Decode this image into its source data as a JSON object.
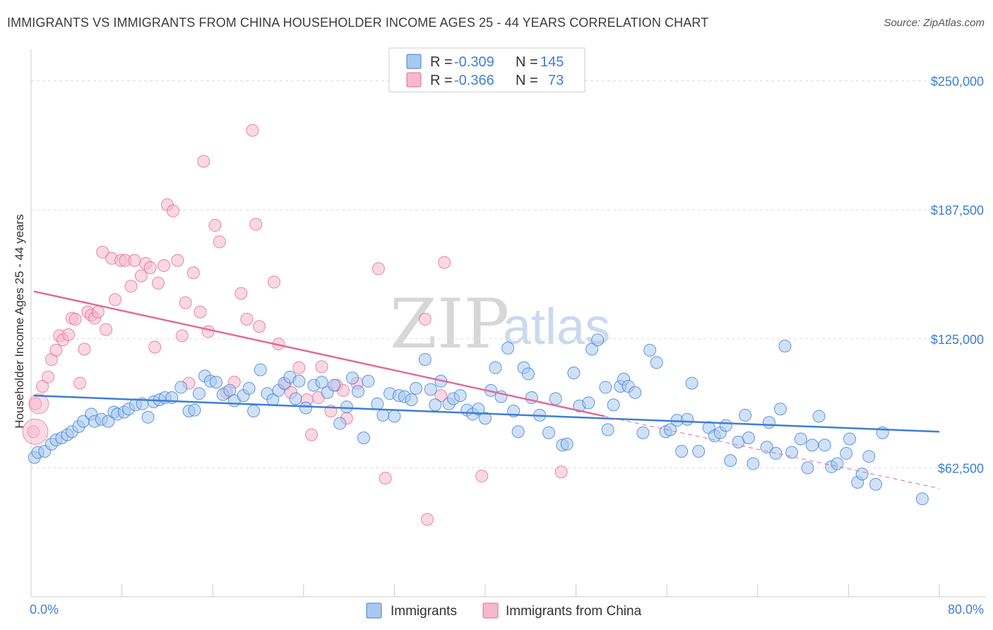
{
  "title": "IMMIGRANTS VS IMMIGRANTS FROM CHINA HOUSEHOLDER INCOME AGES 25 - 44 YEARS CORRELATION CHART",
  "source": "Source: ZipAtlas.com",
  "watermark": {
    "zip": "ZIP",
    "atlas": "atlas"
  },
  "colors": {
    "blue": "#3d7fd6",
    "blue_fill": "#a9c8f0",
    "pink": "#e26a96",
    "pink_fill": "#f6b8cc",
    "grid": "#dddddd"
  },
  "legend_box": {
    "rows": [
      {
        "r_label": "R = ",
        "r_value": "-0.309",
        "n_label": "N = ",
        "n_value": "145"
      },
      {
        "r_label": "R = ",
        "r_value": "-0.366",
        "n_label": "N = ",
        "n_value": "73"
      }
    ]
  },
  "chart_data": {
    "type": "scatter",
    "xlabel": "",
    "ylabel": "Householder Income Ages 25 - 44 years",
    "xlim": [
      0,
      80
    ],
    "ylim": [
      0,
      262500
    ],
    "x_tick_labels": [
      "0.0%",
      "80.0%"
    ],
    "y_ticks": [
      62500,
      125000,
      187500,
      250000
    ],
    "y_tick_labels": [
      "$62,500",
      "$125,000",
      "$187,500",
      "$250,000"
    ],
    "grid": true,
    "legend_position": "top-center",
    "series": [
      {
        "name": "Immigrants",
        "trend": {
          "x": [
            0,
            80
          ],
          "y": [
            97500,
            80000
          ]
        },
        "points": [
          [
            0.3,
            67500
          ],
          [
            0.6,
            70000
          ],
          [
            1.2,
            70500
          ],
          [
            1.8,
            74000
          ],
          [
            2.2,
            76000
          ],
          [
            2.7,
            77000
          ],
          [
            3.2,
            78500
          ],
          [
            3.6,
            80000
          ],
          [
            4.2,
            82500
          ],
          [
            4.6,
            85000
          ],
          [
            5.3,
            88500
          ],
          [
            5.6,
            85000
          ],
          [
            6.2,
            86000
          ],
          [
            6.8,
            85000
          ],
          [
            7.3,
            89500
          ],
          [
            7.6,
            88500
          ],
          [
            8.2,
            89500
          ],
          [
            8.6,
            91000
          ],
          [
            9.2,
            93000
          ],
          [
            9.8,
            93500
          ],
          [
            10.3,
            87000
          ],
          [
            10.8,
            94500
          ],
          [
            11.3,
            95500
          ],
          [
            11.8,
            96500
          ],
          [
            12.4,
            96500
          ],
          [
            13.2,
            101500
          ],
          [
            13.9,
            90000
          ],
          [
            14.4,
            90500
          ],
          [
            14.8,
            98500
          ],
          [
            15.3,
            107000
          ],
          [
            15.8,
            104500
          ],
          [
            16.3,
            104000
          ],
          [
            16.9,
            98000
          ],
          [
            17.5,
            100000
          ],
          [
            17.9,
            95000
          ],
          [
            18.7,
            97500
          ],
          [
            19.2,
            101000
          ],
          [
            19.6,
            90000
          ],
          [
            20.2,
            110000
          ],
          [
            20.8,
            98500
          ],
          [
            21.3,
            95500
          ],
          [
            21.8,
            100000
          ],
          [
            22.3,
            103500
          ],
          [
            22.8,
            106500
          ],
          [
            23.3,
            96000
          ],
          [
            23.6,
            104500
          ],
          [
            24.2,
            91500
          ],
          [
            24.9,
            102500
          ],
          [
            25.6,
            104000
          ],
          [
            26.1,
            99000
          ],
          [
            26.7,
            102500
          ],
          [
            27.2,
            84000
          ],
          [
            27.8,
            92000
          ],
          [
            28.3,
            106000
          ],
          [
            28.8,
            99500
          ],
          [
            29.3,
            77000
          ],
          [
            29.7,
            104500
          ],
          [
            30.5,
            93500
          ],
          [
            31.0,
            88000
          ],
          [
            31.6,
            98500
          ],
          [
            32.0,
            87500
          ],
          [
            32.4,
            97500
          ],
          [
            32.9,
            97000
          ],
          [
            33.5,
            95500
          ],
          [
            33.9,
            101000
          ],
          [
            34.7,
            115000
          ],
          [
            35.2,
            100500
          ],
          [
            35.6,
            93000
          ],
          [
            36.1,
            104500
          ],
          [
            36.8,
            93500
          ],
          [
            37.2,
            96000
          ],
          [
            37.8,
            97500
          ],
          [
            38.4,
            90500
          ],
          [
            38.9,
            88500
          ],
          [
            39.4,
            91000
          ],
          [
            40.0,
            86500
          ],
          [
            40.5,
            100000
          ],
          [
            40.9,
            111000
          ],
          [
            41.4,
            97000
          ],
          [
            42.0,
            120500
          ],
          [
            42.5,
            90000
          ],
          [
            42.9,
            80000
          ],
          [
            43.4,
            111000
          ],
          [
            43.8,
            108000
          ],
          [
            44.1,
            96500
          ],
          [
            44.8,
            88000
          ],
          [
            45.6,
            79500
          ],
          [
            46.2,
            96000
          ],
          [
            46.8,
            73500
          ],
          [
            47.2,
            74000
          ],
          [
            47.8,
            108500
          ],
          [
            48.3,
            92500
          ],
          [
            49.1,
            94000
          ],
          [
            49.4,
            120000
          ],
          [
            49.9,
            124500
          ],
          [
            50.6,
            101500
          ],
          [
            50.8,
            81000
          ],
          [
            51.3,
            93000
          ],
          [
            51.9,
            102000
          ],
          [
            52.2,
            105500
          ],
          [
            52.6,
            102000
          ],
          [
            53.2,
            99000
          ],
          [
            53.9,
            79500
          ],
          [
            54.5,
            119500
          ],
          [
            55.1,
            113500
          ],
          [
            55.9,
            80000
          ],
          [
            56.3,
            81000
          ],
          [
            56.9,
            85500
          ],
          [
            57.3,
            70500
          ],
          [
            57.8,
            86000
          ],
          [
            58.2,
            103500
          ],
          [
            58.8,
            70500
          ],
          [
            59.7,
            82000
          ],
          [
            60.2,
            78000
          ],
          [
            60.7,
            79500
          ],
          [
            61.2,
            83000
          ],
          [
            61.6,
            66000
          ],
          [
            62.3,
            75000
          ],
          [
            62.9,
            88000
          ],
          [
            63.2,
            77000
          ],
          [
            63.6,
            64500
          ],
          [
            64.8,
            72500
          ],
          [
            65.0,
            84500
          ],
          [
            65.6,
            69500
          ],
          [
            66.0,
            91000
          ],
          [
            66.4,
            121500
          ],
          [
            67.0,
            70000
          ],
          [
            67.8,
            76500
          ],
          [
            68.4,
            62500
          ],
          [
            68.8,
            73500
          ],
          [
            69.4,
            87500
          ],
          [
            69.9,
            73500
          ],
          [
            70.5,
            63000
          ],
          [
            71.0,
            64500
          ],
          [
            71.8,
            69500
          ],
          [
            72.1,
            76500
          ],
          [
            72.8,
            55500
          ],
          [
            73.2,
            59500
          ],
          [
            73.8,
            68000
          ],
          [
            74.4,
            54500
          ],
          [
            75.0,
            79500
          ],
          [
            78.5,
            47500
          ]
        ]
      },
      {
        "name": "Immigrants from China",
        "trend": {
          "x": [
            0,
            50.5
          ],
          "y": [
            148000,
            87500
          ]
        },
        "trend_projection": {
          "x": [
            50.5,
            80
          ],
          "y": [
            87500,
            52500
          ]
        },
        "points": [
          [
            0.2,
            80000
          ],
          [
            0.4,
            93500
          ],
          [
            1.0,
            102000
          ],
          [
            1.5,
            106500
          ],
          [
            1.8,
            115000
          ],
          [
            2.2,
            119500
          ],
          [
            2.5,
            126500
          ],
          [
            2.8,
            124500
          ],
          [
            3.3,
            127000
          ],
          [
            3.6,
            135000
          ],
          [
            3.9,
            134500
          ],
          [
            4.3,
            103500
          ],
          [
            4.7,
            120000
          ],
          [
            5.0,
            138000
          ],
          [
            5.3,
            136500
          ],
          [
            5.6,
            135000
          ],
          [
            5.9,
            138000
          ],
          [
            6.3,
            167000
          ],
          [
            6.6,
            129500
          ],
          [
            7.1,
            164000
          ],
          [
            7.4,
            144000
          ],
          [
            7.9,
            163000
          ],
          [
            8.3,
            163000
          ],
          [
            8.8,
            150500
          ],
          [
            9.1,
            163000
          ],
          [
            9.7,
            155500
          ],
          [
            10.1,
            161500
          ],
          [
            10.5,
            159500
          ],
          [
            10.9,
            121000
          ],
          [
            11.2,
            152000
          ],
          [
            11.7,
            160500
          ],
          [
            12.0,
            190000
          ],
          [
            12.5,
            187000
          ],
          [
            12.9,
            163000
          ],
          [
            13.3,
            126500
          ],
          [
            13.6,
            142500
          ],
          [
            13.9,
            103500
          ],
          [
            14.3,
            157000
          ],
          [
            14.9,
            138000
          ],
          [
            15.2,
            211000
          ],
          [
            15.6,
            128500
          ],
          [
            16.2,
            180000
          ],
          [
            16.6,
            172000
          ],
          [
            17.2,
            99000
          ],
          [
            17.9,
            104000
          ],
          [
            18.5,
            147000
          ],
          [
            19.0,
            134500
          ],
          [
            19.5,
            226000
          ],
          [
            19.8,
            180500
          ],
          [
            20.1,
            131000
          ],
          [
            21.4,
            152500
          ],
          [
            21.8,
            122500
          ],
          [
            22.4,
            103000
          ],
          [
            22.9,
            99000
          ],
          [
            23.6,
            111000
          ],
          [
            24.3,
            95500
          ],
          [
            24.7,
            78500
          ],
          [
            25.3,
            96500
          ],
          [
            25.6,
            111500
          ],
          [
            26.4,
            90000
          ],
          [
            26.9,
            102500
          ],
          [
            27.5,
            100000
          ],
          [
            27.8,
            86500
          ],
          [
            28.7,
            103500
          ],
          [
            30.6,
            159000
          ],
          [
            31.2,
            57500
          ],
          [
            34.7,
            134500
          ],
          [
            34.9,
            37500
          ],
          [
            36.1,
            97500
          ],
          [
            36.4,
            162000
          ],
          [
            39.7,
            58500
          ],
          [
            46.7,
            60500
          ]
        ]
      }
    ]
  },
  "bottom_legend": {
    "items": [
      "Immigrants",
      "Immigrants from China"
    ]
  }
}
